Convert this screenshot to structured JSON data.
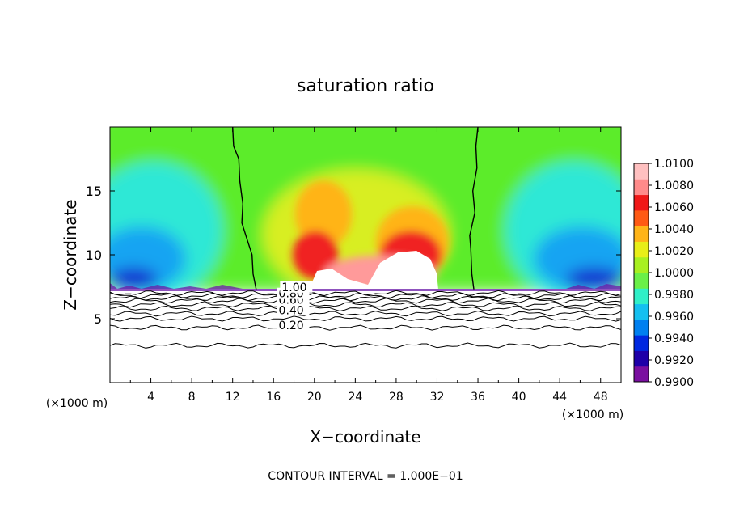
{
  "chart_data": {
    "type": "heatmap",
    "title": "saturation ratio",
    "xlabel": "X−coordinate",
    "ylabel": "Z−coordinate",
    "x_unit_left": "(×1000 m)",
    "x_unit_right": "(×1000 m)",
    "xlim": [
      0,
      50
    ],
    "ylim": [
      0,
      20
    ],
    "x_ticks": [
      4,
      8,
      12,
      16,
      20,
      24,
      28,
      32,
      36,
      40,
      44,
      48
    ],
    "x_tick_labels": [
      "4",
      "8",
      "12",
      "16",
      "20",
      "24",
      "28",
      "32",
      "36",
      "40",
      "44",
      "48"
    ],
    "y_ticks": [
      5,
      10,
      15
    ],
    "y_tick_labels": [
      "5",
      "10",
      "15"
    ],
    "footer": "CONTOUR INTERVAL = 1.000E−01",
    "colorbar": {
      "range": [
        0.99,
        1.01
      ],
      "tick_labels": [
        "1.0100",
        "1.0080",
        "1.0060",
        "1.0040",
        "1.0020",
        "1.0000",
        "0.9980",
        "0.9960",
        "0.9940",
        "0.9920",
        "0.9900"
      ],
      "colors": [
        "#7a0fa0",
        "#1e00a8",
        "#0028e0",
        "#0080f0",
        "#14c0f0",
        "#30f0c8",
        "#6af048",
        "#a8f020",
        "#e8ee18",
        "#ffb418",
        "#ff5a14",
        "#f01818",
        "#ff8a8a",
        "#ffc0c0"
      ]
    },
    "contour_labels": [
      {
        "text": "0.20",
        "x": 16.5,
        "y": 4.1
      },
      {
        "text": "0.40",
        "x": 16.5,
        "y": 5.3
      },
      {
        "text": "0.60",
        "x": 16.5,
        "y": 6.1
      },
      {
        "text": "0.80",
        "x": 16.5,
        "y": 6.6
      },
      {
        "text": "1.00",
        "x": 16.8,
        "y": 7.1
      }
    ],
    "contour_levels_z": [
      2.9,
      4.3,
      5.0,
      5.4,
      5.8,
      6.1,
      6.4,
      6.6,
      6.8,
      7.0
    ],
    "saturation_boundary_left": [
      [
        12.0,
        20
      ],
      [
        12.1,
        18.5
      ],
      [
        12.6,
        17.5
      ],
      [
        12.7,
        15.8
      ],
      [
        13.0,
        14.0
      ],
      [
        12.9,
        12.5
      ],
      [
        13.3,
        11.5
      ],
      [
        13.9,
        10.0
      ],
      [
        14.0,
        8.5
      ],
      [
        14.3,
        7.3
      ]
    ],
    "saturation_boundary_right": [
      [
        36.0,
        20
      ],
      [
        35.8,
        18.5
      ],
      [
        35.9,
        16.8
      ],
      [
        35.5,
        15.0
      ],
      [
        35.7,
        13.3
      ],
      [
        35.2,
        11.5
      ],
      [
        35.3,
        10.5
      ],
      [
        35.4,
        8.5
      ],
      [
        35.6,
        7.3
      ]
    ]
  }
}
